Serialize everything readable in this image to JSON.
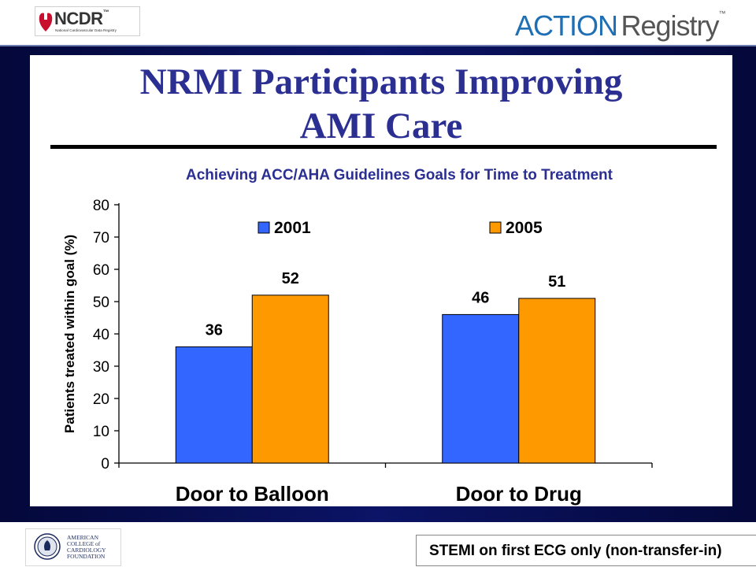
{
  "header": {
    "ncdr_logo": {
      "word": "NCDR",
      "tm": "™",
      "subtitle": "National Cardiovascular Data Registry"
    },
    "action_logo": {
      "word1": "ACTION",
      "word2": "Registry",
      "tm": "™"
    }
  },
  "slide": {
    "title_line1": "NRMI Participants Improving",
    "title_line2": "AMI Care"
  },
  "chart_data": {
    "type": "bar",
    "title": "Achieving ACC/AHA Guidelines Goals for Time to Treatment",
    "xlabel": "",
    "ylabel": "Patients treated within goal (%)",
    "categories": [
      "Door to Balloon",
      "Door to Drug"
    ],
    "series": [
      {
        "name": "2001",
        "values": [
          36,
          46
        ],
        "color": "#3366ff"
      },
      {
        "name": "2005",
        "values": [
          52,
          51
        ],
        "color": "#ff9900"
      }
    ],
    "ylim": [
      0,
      80
    ],
    "yticks": [
      0,
      10,
      20,
      30,
      40,
      50,
      60,
      70,
      80
    ],
    "data_labels": true,
    "legend": "top",
    "grid": false
  },
  "footer": {
    "acc_logo": {
      "line1": "AMERICAN",
      "line2": "COLLEGE of",
      "line3": "CARDIOLOGY",
      "line4": "FOUNDATION"
    },
    "footnote": "STEMI on first ECG only (non-transfer-in)"
  }
}
